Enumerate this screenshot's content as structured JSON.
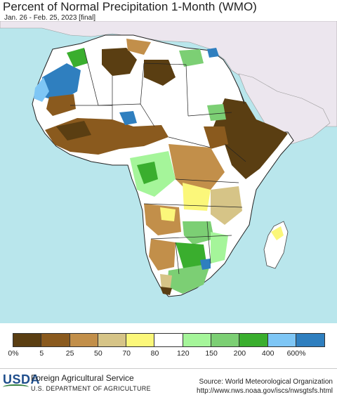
{
  "header": {
    "title": "Percent of Normal Precipitation 1-Month (WMO)",
    "subtitle": "Jan. 26 - Feb. 25, 2023 [final]"
  },
  "legend": {
    "colors": [
      "#5a3e12",
      "#8a5a1e",
      "#c28f4a",
      "#d6c487",
      "#fbf77a",
      "#ffffff",
      "#a5f59a",
      "#7ccf74",
      "#3aae2e",
      "#7ec6f5",
      "#2f7fbf"
    ],
    "labels": [
      "0%",
      "5",
      "25",
      "50",
      "70",
      "80",
      "120",
      "150",
      "200",
      "400",
      "600%"
    ]
  },
  "map": {
    "ocean_color": "#b9e6ec",
    "other_land_color": "#ece6ee",
    "region": "Africa"
  },
  "footer": {
    "logo_text": "USDA",
    "agency": "Foreign Agricultural Service",
    "department": "U.S. DEPARTMENT OF AGRICULTURE",
    "source_line1": "Source: World Meteorological Organization",
    "source_line2": "http://www.nws.noaa.gov/iscs/nwsgtsfs.html"
  }
}
